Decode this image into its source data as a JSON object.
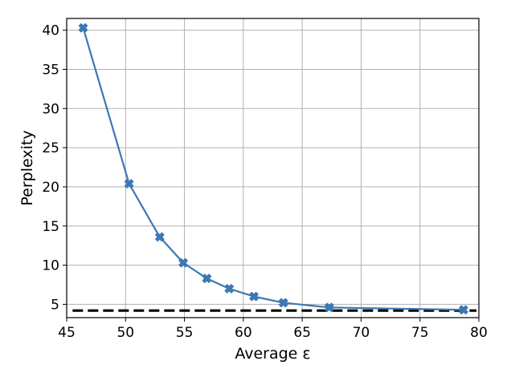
{
  "chart_data": {
    "type": "line",
    "title": "",
    "xlabel": "Average ε",
    "ylabel": "Perplexity",
    "xlim": [
      45,
      80
    ],
    "ylim": [
      3.3,
      41.5
    ],
    "xticks": [
      45,
      50,
      55,
      60,
      65,
      70,
      75,
      80
    ],
    "yticks": [
      5,
      10,
      15,
      20,
      25,
      30,
      35,
      40
    ],
    "grid": true,
    "legend": "none",
    "series": [
      {
        "color": "#3c78b4",
        "marker": "X",
        "x": [
          46.4,
          50.3,
          52.9,
          54.9,
          56.9,
          58.8,
          60.9,
          63.4,
          67.3,
          78.7
        ],
        "y": [
          40.3,
          20.4,
          13.6,
          10.3,
          8.3,
          7.0,
          6.0,
          5.2,
          4.6,
          4.3
        ]
      }
    ],
    "reference_line": {
      "color": "#000000",
      "style": "dashed",
      "y": 4.2,
      "x": [
        45.5,
        79.8
      ]
    }
  }
}
